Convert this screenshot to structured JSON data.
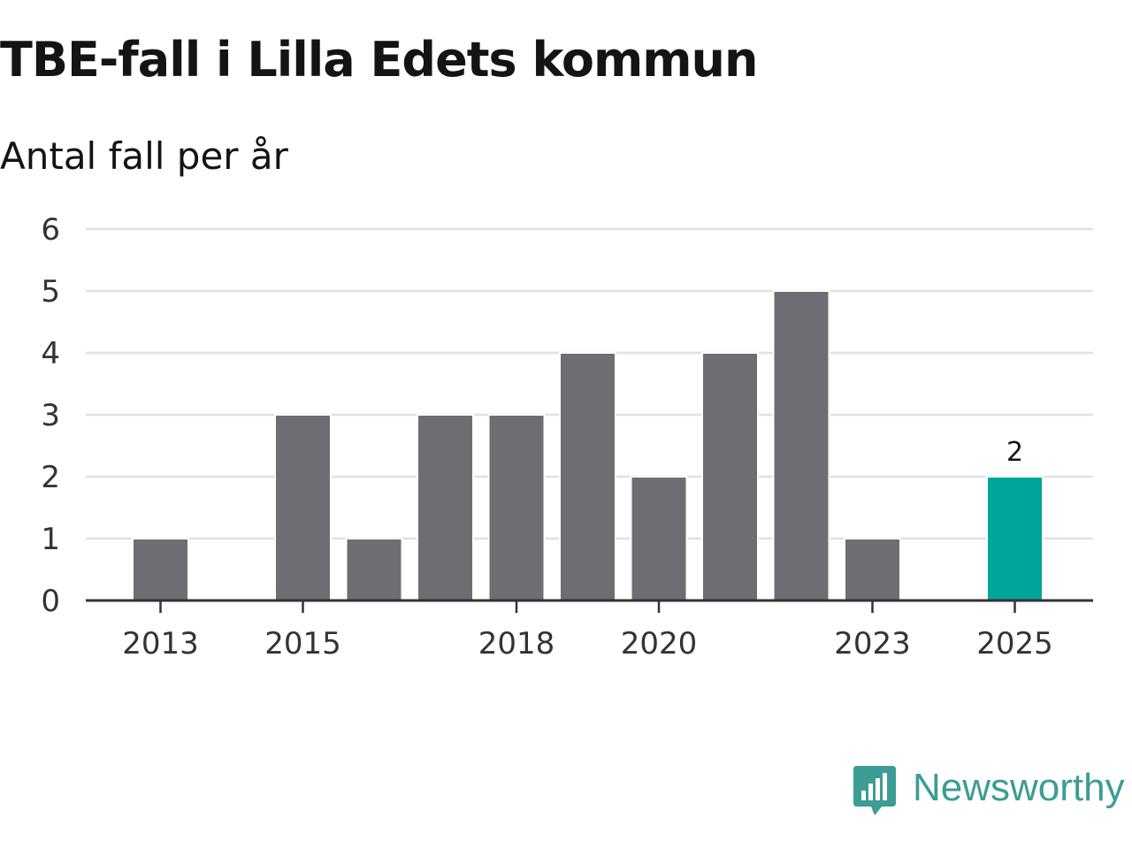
{
  "chart_data": {
    "type": "bar",
    "title": "TBE-fall i Lilla Edets kommun",
    "subtitle": "Antal fall per år",
    "xlabel": "",
    "ylabel": "",
    "categories": [
      "2013",
      "2014",
      "2015",
      "2016",
      "2017",
      "2018",
      "2019",
      "2020",
      "2021",
      "2022",
      "2023",
      "2024",
      "2025"
    ],
    "values": [
      1,
      0,
      3,
      1,
      3,
      3,
      4,
      2,
      4,
      5,
      1,
      0,
      2
    ],
    "x_tick_labels": [
      "2013",
      "2015",
      "2018",
      "2020",
      "2023",
      "2025"
    ],
    "y_ticks": [
      0,
      1,
      2,
      3,
      4,
      5,
      6
    ],
    "ylim": [
      0,
      6
    ],
    "grid": true,
    "highlight_category": "2025",
    "data_labels": [
      {
        "category": "2025",
        "text": "2"
      }
    ],
    "colors": {
      "bar": "#6e6d73",
      "highlight": "#00a59a",
      "grid": "#e0e0e0",
      "axis": "#333333"
    }
  },
  "brand": {
    "name": "Newsworthy",
    "icon": "newsworthy-logo-icon",
    "color": "#3d9c94"
  }
}
